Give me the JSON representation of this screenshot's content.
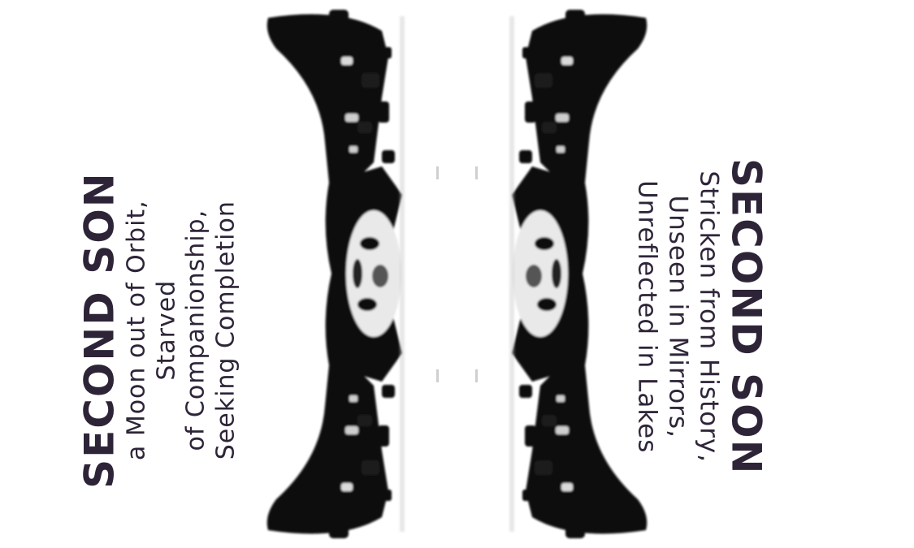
{
  "colors": {
    "text": "#2e2438",
    "ink": "#0a0a0a",
    "paper": "#ffffff"
  },
  "left_panel": {
    "title": "SECOND SON",
    "lines": [
      "a Moon out of Orbit,",
      "Starved",
      "of Companionship,",
      "Seeking Completion"
    ]
  },
  "right_panel": {
    "title": "SECOND SON",
    "lines": [
      "Stricken from History,",
      "Unseen in Mirrors,",
      "Unreflected in Lakes"
    ]
  },
  "artwork": {
    "name": "mirrored-inkblot-artwork"
  }
}
